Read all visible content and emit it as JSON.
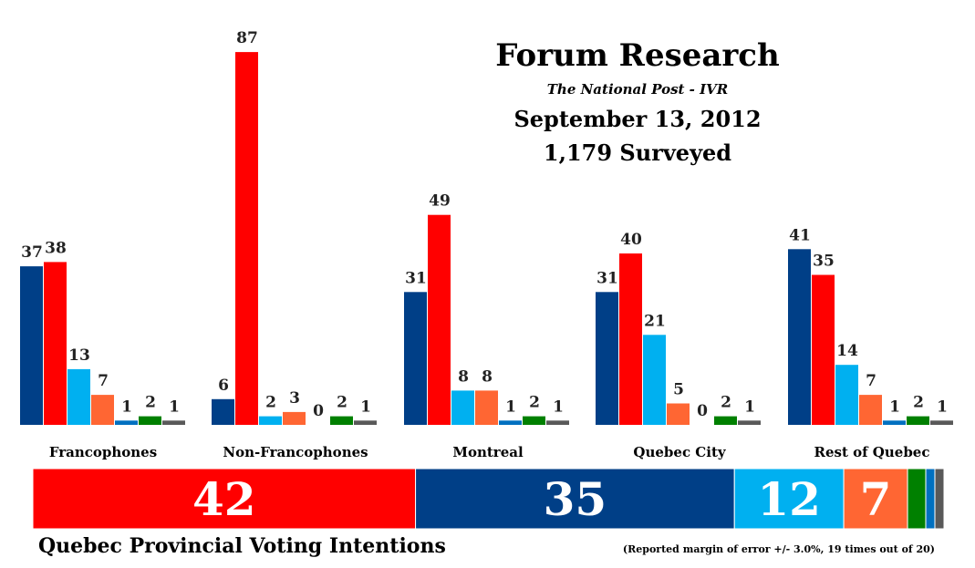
{
  "chart_data": {
    "type": "bar",
    "title": "Forum Research",
    "subtitle": "The National Post - IVR",
    "date": "September 13, 2012",
    "sample": "1,179 Surveyed",
    "categories": [
      "Francophones",
      "Non-Francophones",
      "Montreal",
      "Quebec City",
      "Rest of Quebec"
    ],
    "series": [
      {
        "color": "#003f87",
        "values": [
          37,
          6,
          31,
          31,
          41
        ]
      },
      {
        "color": "#ff0000",
        "values": [
          38,
          87,
          49,
          40,
          35
        ]
      },
      {
        "color": "#00b0f0",
        "values": [
          13,
          2,
          8,
          21,
          14
        ]
      },
      {
        "color": "#ff6633",
        "values": [
          7,
          3,
          8,
          5,
          7
        ]
      },
      {
        "color": "#0070c0",
        "values": [
          1,
          0,
          1,
          0,
          1
        ]
      },
      {
        "color": "#008000",
        "values": [
          2,
          2,
          2,
          2,
          2
        ]
      },
      {
        "color": "#595959",
        "values": [
          1,
          1,
          1,
          1,
          1
        ]
      }
    ],
    "overall": {
      "segments": [
        {
          "value": 42,
          "label": "42",
          "color": "#ff0000"
        },
        {
          "value": 35,
          "label": "35",
          "color": "#003f87"
        },
        {
          "value": 12,
          "label": "12",
          "color": "#00b0f0"
        },
        {
          "value": 7,
          "label": "7",
          "color": "#ff6633"
        },
        {
          "value": 2,
          "label": "",
          "color": "#008000"
        },
        {
          "value": 1,
          "label": "",
          "color": "#0070c0"
        },
        {
          "value": 1,
          "label": "",
          "color": "#595959"
        }
      ]
    },
    "footer": "Quebec Provincial Voting Intentions",
    "note": "(Reported margin of error +/- 3.0%, 19 times out of 20)"
  }
}
